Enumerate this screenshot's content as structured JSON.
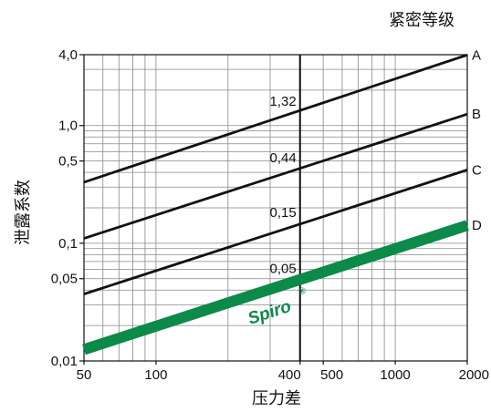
{
  "chart_data": {
    "type": "line",
    "xlabel": "压力差",
    "ylabel": "泄露系数",
    "legend_title": "紧密等级",
    "x_scale": "log",
    "y_scale": "log",
    "xlim": [
      50,
      2000
    ],
    "ylim": [
      0.01,
      4.0
    ],
    "grid": true,
    "x_tick_labels": [
      {
        "value": 50,
        "label": "50"
      },
      {
        "value": 100,
        "label": "100"
      },
      {
        "value": 400,
        "label": "400"
      },
      {
        "value": 500,
        "label": "500"
      },
      {
        "value": 1000,
        "label": "1000"
      },
      {
        "value": 2000,
        "label": "2000"
      }
    ],
    "y_tick_labels": [
      {
        "value": 0.01,
        "label": "0,01"
      },
      {
        "value": 0.05,
        "label": "0,05"
      },
      {
        "value": 0.1,
        "label": "0,1"
      },
      {
        "value": 0.5,
        "label": "0,5"
      },
      {
        "value": 1.0,
        "label": "1,0"
      },
      {
        "value": 4.0,
        "label": "4,0"
      }
    ],
    "reference_line": {
      "x": 400
    },
    "series": [
      {
        "name": "A",
        "x": [
          50,
          2000
        ],
        "y": [
          0.33,
          3.98
        ],
        "color": "#111111",
        "value_label": "1,32",
        "label_at": 400,
        "label_value": 1.32
      },
      {
        "name": "B",
        "x": [
          50,
          2000
        ],
        "y": [
          0.11,
          1.25
        ],
        "color": "#111111",
        "value_label": "0,44",
        "label_at": 400,
        "label_value": 0.44
      },
      {
        "name": "C",
        "x": [
          50,
          2000
        ],
        "y": [
          0.037,
          0.42
        ],
        "color": "#111111",
        "value_label": "0,15",
        "label_at": 400,
        "label_value": 0.15
      },
      {
        "name": "D",
        "x": [
          50,
          2000
        ],
        "y": [
          0.0125,
          0.142
        ],
        "color": "#0b8a4a",
        "value_label": "0,05",
        "label_at": 400,
        "label_value": 0.05
      }
    ],
    "brand_label": "Spiro",
    "brand_mark": "®"
  }
}
